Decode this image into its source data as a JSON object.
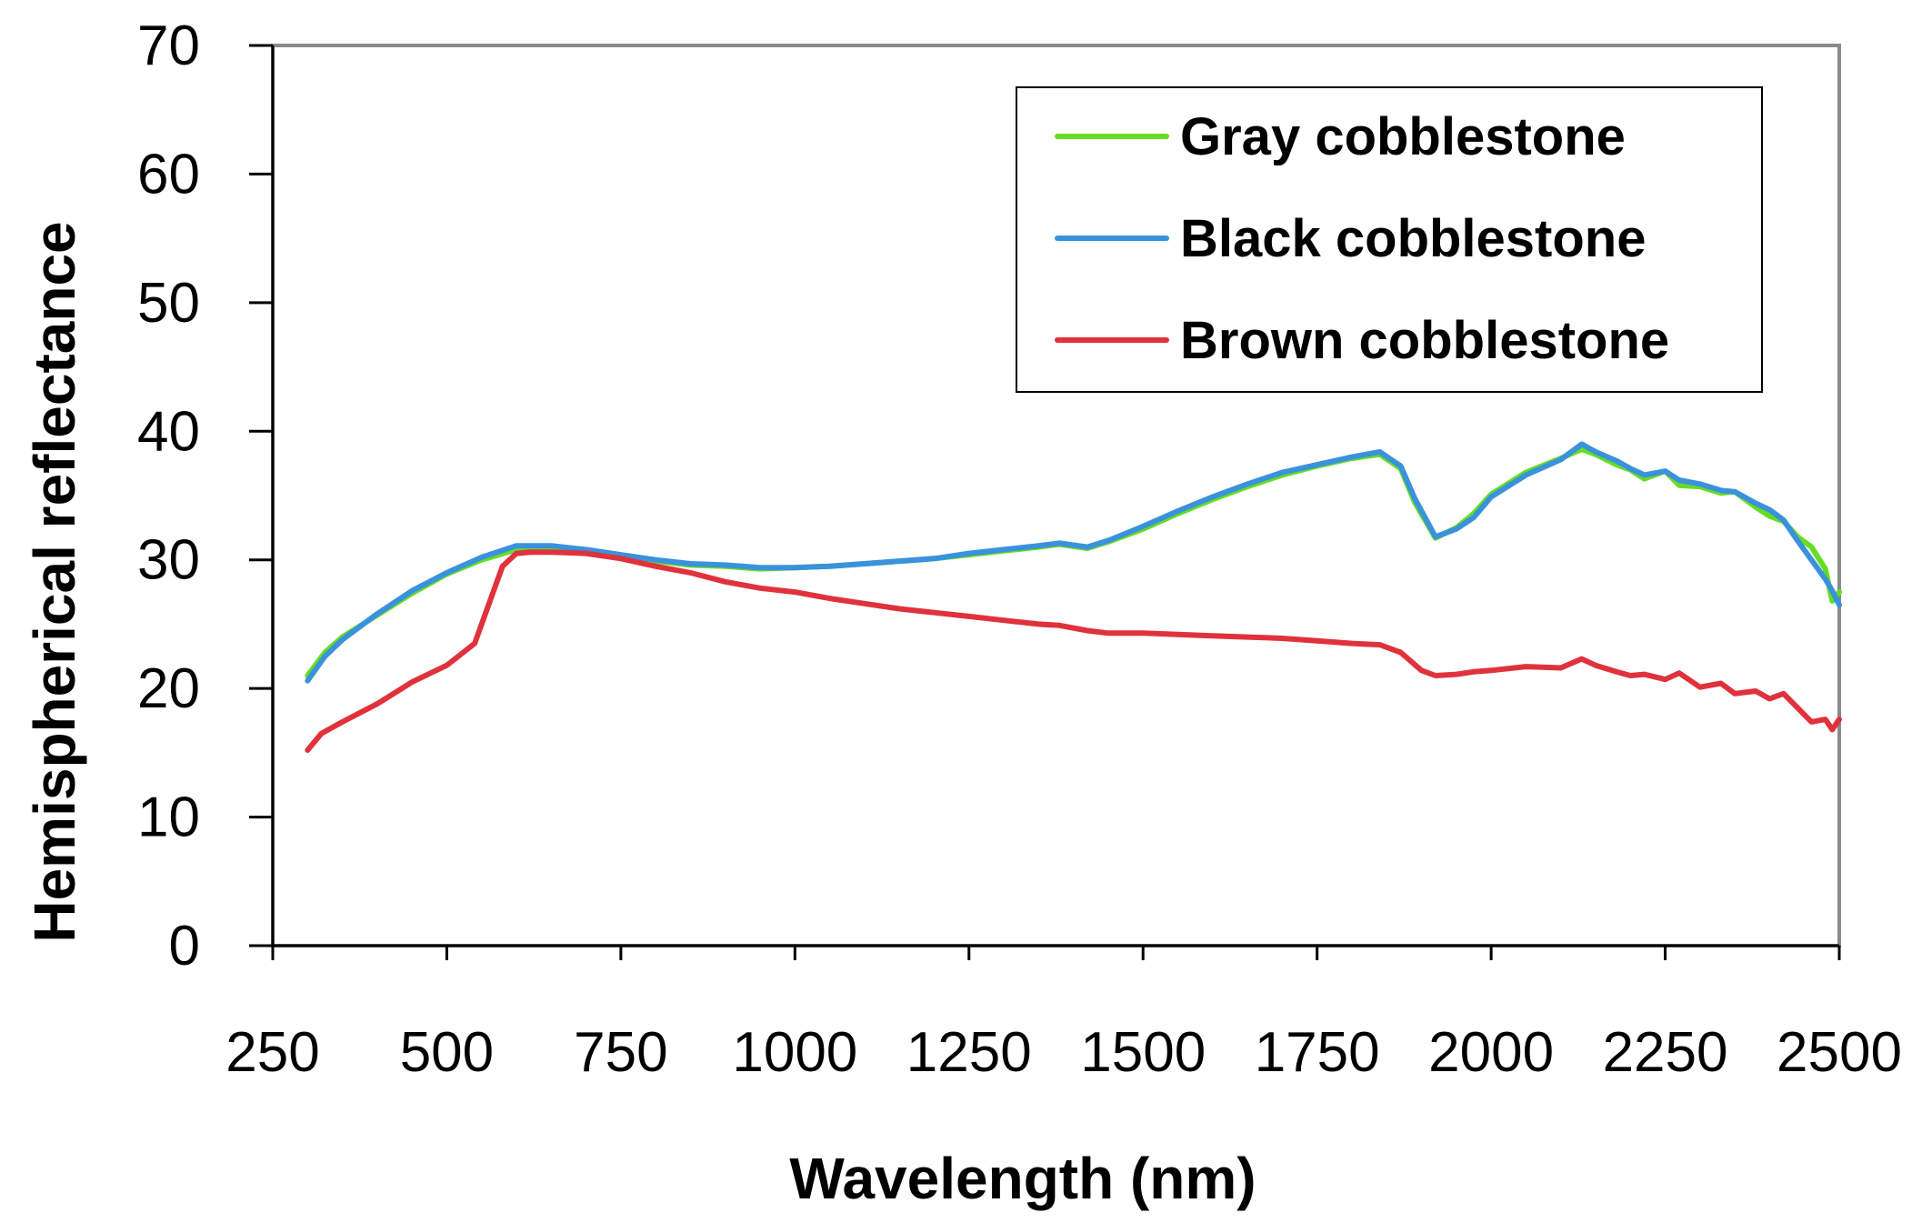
{
  "chart_data": {
    "type": "line",
    "title": "",
    "xlabel": "Wavelength (nm)",
    "ylabel": "Hemispherical reflectance",
    "xlim": [
      250,
      2500
    ],
    "ylim": [
      0,
      70
    ],
    "xticks": [
      250,
      500,
      750,
      1000,
      1250,
      1500,
      1750,
      2000,
      2250,
      2500
    ],
    "yticks": [
      0,
      10,
      20,
      30,
      40,
      50,
      60,
      70
    ],
    "xtick_labels": [
      "250",
      "500",
      "750",
      "1000",
      "1250",
      "1500",
      "1750",
      "2000",
      "2250",
      "2500"
    ],
    "ytick_labels": [
      "0",
      "10",
      "20",
      "30",
      "40",
      "50",
      "60",
      "70"
    ],
    "grid": false,
    "legend_position": "top-right",
    "series": [
      {
        "name": "Gray cobblestone",
        "color": "#66dd22",
        "x": [
          300,
          325,
          350,
          400,
          450,
          500,
          550,
          600,
          650,
          700,
          750,
          800,
          850,
          900,
          950,
          1000,
          1050,
          1100,
          1150,
          1200,
          1250,
          1300,
          1350,
          1380,
          1420,
          1450,
          1500,
          1550,
          1600,
          1650,
          1700,
          1750,
          1800,
          1840,
          1870,
          1890,
          1920,
          1950,
          1975,
          2000,
          2050,
          2100,
          2130,
          2150,
          2180,
          2200,
          2220,
          2250,
          2270,
          2300,
          2330,
          2350,
          2380,
          2400,
          2420,
          2440,
          2460,
          2480,
          2490,
          2500
        ],
        "y": [
          21,
          22.8,
          24,
          25.7,
          27.4,
          28.9,
          30,
          30.8,
          30.8,
          30.5,
          30.2,
          29.9,
          29.6,
          29.5,
          29.3,
          29.4,
          29.5,
          29.7,
          29.9,
          30.1,
          30.4,
          30.7,
          31,
          31.2,
          30.9,
          31.4,
          32.4,
          33.6,
          34.7,
          35.7,
          36.6,
          37.3,
          37.9,
          38.2,
          37.1,
          34.5,
          31.7,
          32.5,
          33.6,
          35.1,
          36.8,
          37.9,
          38.6,
          38.2,
          37.4,
          37,
          36.3,
          36.9,
          35.8,
          35.7,
          35.2,
          35.3,
          34.1,
          33.4,
          33,
          31.8,
          31,
          29.3,
          26.8,
          27.5
        ]
      },
      {
        "name": "Black cobblestone",
        "color": "#3a92dc",
        "x": [
          300,
          325,
          350,
          400,
          450,
          500,
          550,
          600,
          650,
          700,
          750,
          800,
          850,
          900,
          950,
          1000,
          1050,
          1100,
          1150,
          1200,
          1250,
          1300,
          1350,
          1380,
          1420,
          1450,
          1500,
          1550,
          1600,
          1650,
          1700,
          1750,
          1800,
          1840,
          1870,
          1890,
          1920,
          1950,
          1975,
          2000,
          2050,
          2100,
          2130,
          2150,
          2180,
          2200,
          2220,
          2250,
          2270,
          2300,
          2330,
          2350,
          2380,
          2400,
          2420,
          2440,
          2460,
          2480,
          2490,
          2500
        ],
        "y": [
          20.6,
          22.5,
          23.8,
          25.8,
          27.6,
          29,
          30.2,
          31.1,
          31.1,
          30.8,
          30.4,
          30,
          29.7,
          29.6,
          29.4,
          29.4,
          29.5,
          29.7,
          29.9,
          30.1,
          30.5,
          30.8,
          31.1,
          31.3,
          31,
          31.5,
          32.6,
          33.8,
          34.9,
          35.9,
          36.8,
          37.4,
          38,
          38.4,
          37.3,
          34.8,
          31.8,
          32.4,
          33.3,
          34.9,
          36.6,
          37.8,
          39,
          38.4,
          37.7,
          37.1,
          36.6,
          36.9,
          36.2,
          35.9,
          35.4,
          35.3,
          34.4,
          33.9,
          33.1,
          31.5,
          30,
          28.5,
          27.6,
          26.5
        ]
      },
      {
        "name": "Brown cobblestone",
        "color": "#e0323c",
        "x": [
          300,
          320,
          350,
          400,
          450,
          500,
          540,
          560,
          580,
          600,
          620,
          650,
          700,
          750,
          800,
          850,
          900,
          950,
          1000,
          1050,
          1100,
          1150,
          1200,
          1250,
          1300,
          1350,
          1380,
          1420,
          1450,
          1500,
          1550,
          1600,
          1650,
          1700,
          1750,
          1800,
          1840,
          1870,
          1900,
          1920,
          1950,
          1975,
          2000,
          2050,
          2100,
          2130,
          2150,
          2180,
          2200,
          2220,
          2250,
          2270,
          2300,
          2330,
          2350,
          2380,
          2400,
          2420,
          2440,
          2460,
          2480,
          2490,
          2500
        ],
        "y": [
          15.2,
          16.5,
          17.4,
          18.8,
          20.5,
          21.8,
          23.5,
          26.5,
          29.5,
          30.5,
          30.6,
          30.6,
          30.5,
          30.1,
          29.5,
          29,
          28.3,
          27.8,
          27.5,
          27,
          26.6,
          26.2,
          25.9,
          25.6,
          25.3,
          25,
          24.9,
          24.5,
          24.3,
          24.3,
          24.2,
          24.1,
          24,
          23.9,
          23.7,
          23.5,
          23.4,
          22.8,
          21.4,
          21,
          21.1,
          21.3,
          21.4,
          21.7,
          21.6,
          22.3,
          21.8,
          21.3,
          21,
          21.1,
          20.7,
          21.2,
          20.1,
          20.4,
          19.6,
          19.8,
          19.2,
          19.6,
          18.5,
          17.4,
          17.6,
          16.8,
          17.6
        ]
      }
    ]
  }
}
